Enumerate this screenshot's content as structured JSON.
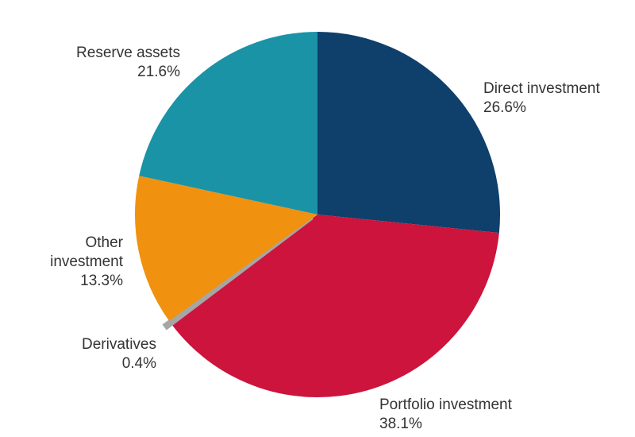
{
  "chart_data": {
    "type": "pie",
    "start": "top",
    "direction": "clockwise",
    "slices": [
      {
        "name": "Direct investment",
        "value": 26.6,
        "label": "26.6%",
        "color": "#0f3f6b",
        "exploded": false
      },
      {
        "name": "Portfolio investment",
        "value": 38.1,
        "label": "38.1%",
        "color": "#cc143c",
        "exploded": false
      },
      {
        "name": "Derivatives",
        "value": 0.4,
        "label": "0.4%",
        "color": "#a6a6a6",
        "exploded": true
      },
      {
        "name": "Other investment",
        "value": 13.3,
        "label": "13.3%",
        "color": "#f0920f",
        "exploded": false
      },
      {
        "name": "Reserve assets",
        "value": 21.6,
        "label": "21.6%",
        "color": "#1a93a6",
        "exploded": false
      }
    ]
  }
}
